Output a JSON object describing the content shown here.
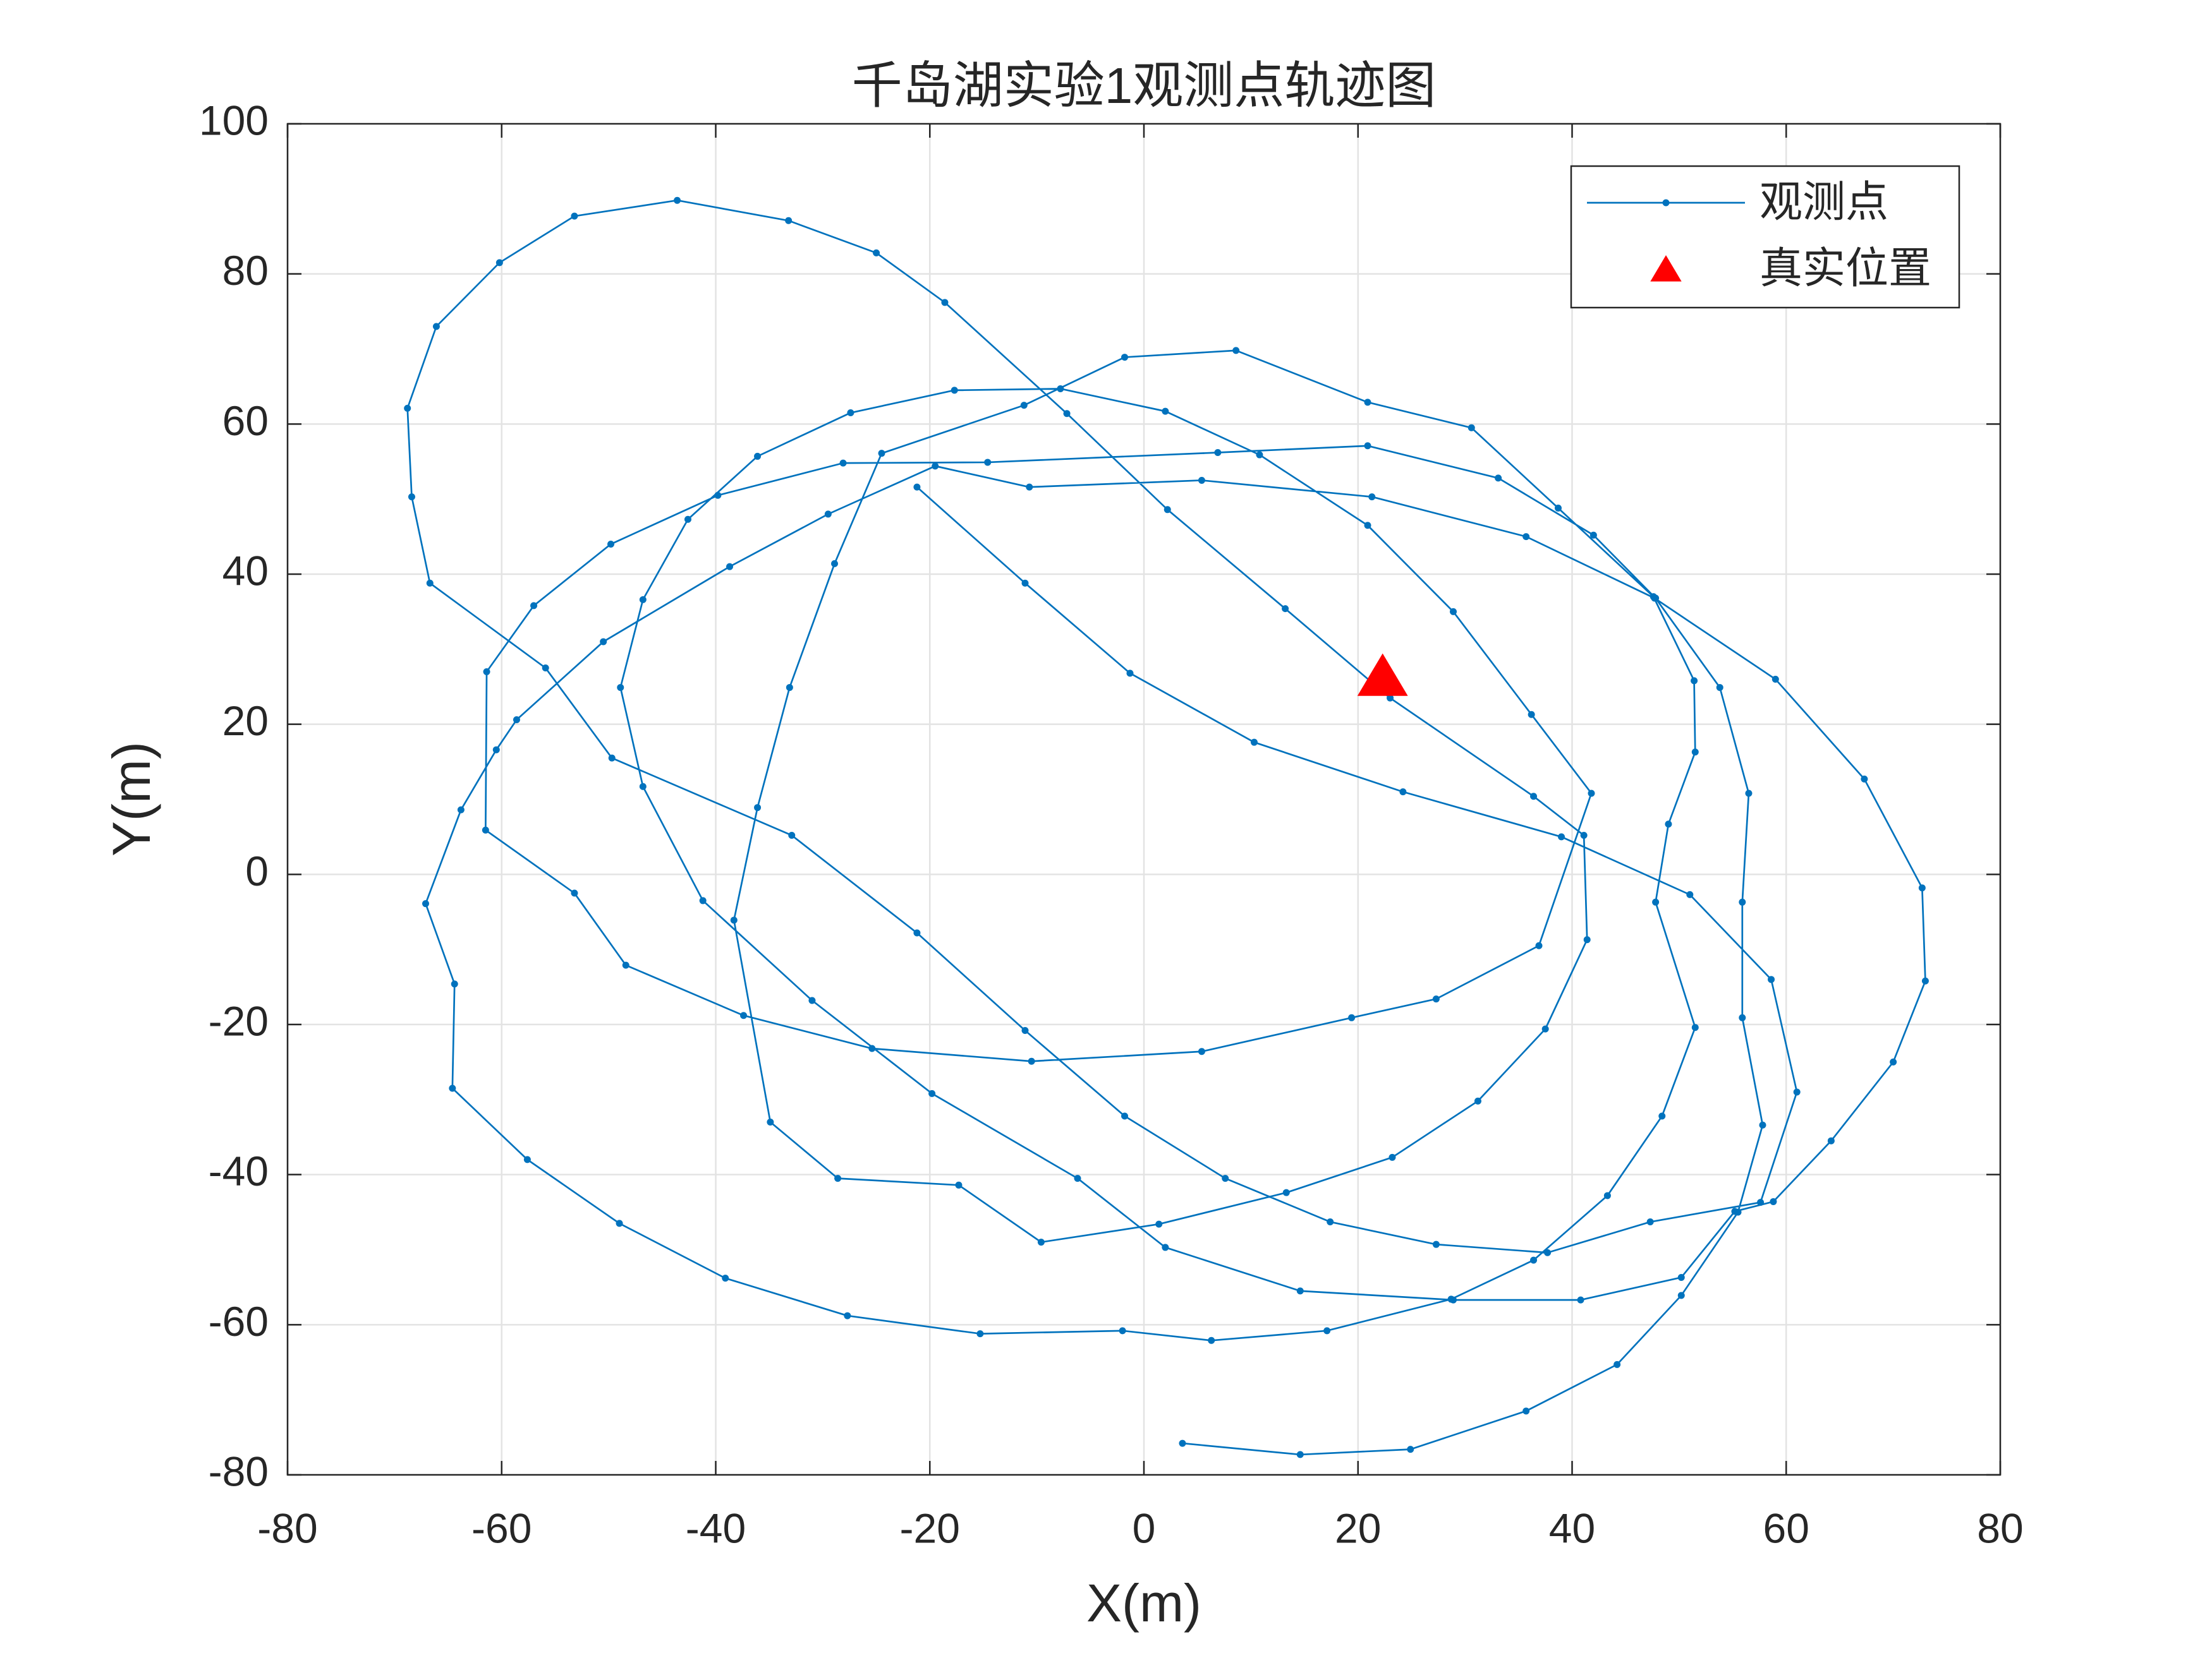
{
  "chart_data": {
    "type": "scatter-line",
    "title": "千岛湖实验1观测点轨迹图",
    "xlabel": "X(m)",
    "ylabel": "Y(m)",
    "xlim": [
      -80,
      80
    ],
    "ylim": [
      -80,
      100
    ],
    "xticks": [
      -80,
      -60,
      -40,
      -20,
      0,
      20,
      40,
      60,
      80
    ],
    "yticks": [
      -80,
      -60,
      -40,
      -20,
      0,
      20,
      40,
      60,
      80,
      100
    ],
    "grid": true,
    "legend": "northeast",
    "series": [
      {
        "name": "观测点",
        "color": "#0072bd",
        "marker": "dot",
        "x": [
          -21.2,
          -11.1,
          -1.3,
          10.3,
          24.2,
          39.0,
          51.0,
          58.6,
          61.0,
          57.6,
          47.3,
          37.7,
          27.3,
          17.4,
          7.6,
          -1.8,
          -11.1,
          -21.2,
          -32.9,
          -49.7,
          -55.9,
          -66.7,
          -68.4,
          -68.8,
          -66.1,
          -60.2,
          -53.2,
          -43.6,
          -33.2,
          -25.0,
          -18.6,
          -7.2,
          2.2,
          13.2,
          23.0,
          36.4,
          41.1,
          41.4,
          37.5,
          31.2,
          23.2,
          13.3,
          1.4,
          -9.6,
          -17.3,
          -28.6,
          -34.9,
          -38.3,
          -36.1,
          -33.1,
          -28.9,
          -24.5,
          -11.2,
          -1.8,
          8.6,
          20.9,
          30.6,
          38.7,
          47.6,
          51.4,
          51.5,
          49.0,
          47.8,
          51.5,
          48.4,
          43.3,
          36.4,
          28.7,
          17.1,
          6.3,
          -2.0,
          -15.3,
          -27.7,
          -39.1,
          -49.0,
          -57.6,
          -64.6,
          -64.4,
          -67.1,
          -63.8,
          -60.5,
          -58.6,
          -50.5,
          -38.7,
          -29.5,
          -19.5,
          -10.7,
          5.4,
          21.3,
          35.7,
          47.7,
          59.0,
          67.3,
          72.7,
          73.0,
          70.0,
          64.2,
          58.8,
          55.2,
          50.2,
          40.8,
          28.9,
          14.6,
          2.0,
          -6.2,
          -19.8,
          -31.0,
          -41.2,
          -46.8,
          -48.9,
          -46.8,
          -42.6,
          -36.1,
          -27.4,
          -17.7,
          -7.8,
          2.0,
          10.8,
          20.9,
          28.9,
          36.2,
          41.8,
          36.9,
          27.3,
          19.4,
          5.4,
          -10.5,
          -25.4,
          -37.4,
          -48.4,
          -53.2,
          -61.5,
          -61.4,
          -57.0,
          -49.8,
          -39.8,
          -28.1,
          -14.6,
          6.9,
          20.9,
          33.1,
          42.0,
          47.8,
          53.8,
          56.5,
          55.9,
          55.9,
          57.8,
          55.5,
          50.2,
          44.2,
          35.7,
          24.9,
          14.6,
          3.6
        ],
        "values": [
          51.6,
          38.8,
          26.8,
          17.6,
          11.0,
          5.0,
          -2.7,
          -14.0,
          -29.0,
          -43.7,
          -46.3,
          -50.4,
          -49.3,
          -46.3,
          -40.5,
          -32.2,
          -20.8,
          -7.8,
          5.2,
          15.5,
          27.5,
          38.8,
          50.3,
          62.1,
          73.0,
          81.5,
          87.7,
          89.8,
          87.1,
          82.8,
          76.2,
          61.4,
          48.6,
          35.4,
          23.5,
          10.4,
          5.2,
          -8.7,
          -20.6,
          -30.2,
          -37.7,
          -42.4,
          -46.6,
          -49.0,
          -41.4,
          -40.5,
          -33.0,
          -6.1,
          8.9,
          24.9,
          41.4,
          56.1,
          62.5,
          68.9,
          69.8,
          62.9,
          59.5,
          48.8,
          37.0,
          25.8,
          16.3,
          6.7,
          -3.7,
          -20.4,
          -32.2,
          -42.8,
          -51.4,
          -56.6,
          -60.8,
          -62.1,
          -60.8,
          -61.2,
          -58.8,
          -53.8,
          -46.5,
          -38.0,
          -28.5,
          -14.6,
          -3.9,
          8.6,
          16.6,
          20.6,
          31.0,
          41.0,
          48.0,
          54.4,
          51.6,
          52.5,
          50.3,
          45.0,
          36.8,
          26.0,
          12.7,
          -1.8,
          -14.2,
          -25.0,
          -35.5,
          -43.6,
          -44.9,
          -53.7,
          -56.7,
          -56.7,
          -55.5,
          -49.7,
          -40.5,
          -29.2,
          -16.8,
          -3.5,
          11.7,
          24.9,
          36.6,
          47.3,
          55.7,
          61.5,
          64.5,
          64.7,
          61.7,
          55.9,
          46.5,
          35.0,
          21.3,
          10.8,
          -9.5,
          -16.6,
          -19.1,
          -23.6,
          -24.9,
          -23.2,
          -18.8,
          -12.1,
          -2.5,
          5.9,
          27.0,
          35.8,
          44.0,
          50.5,
          54.8,
          54.9,
          56.2,
          57.1,
          52.8,
          45.2,
          36.8,
          24.9,
          10.8,
          -3.7,
          -19.1,
          -33.4,
          -45.0,
          -56.1,
          -65.3,
          -71.5,
          -76.6,
          -77.3,
          -75.8
        ]
      },
      {
        "name": "真实位置",
        "color": "#ff0000",
        "marker": "triangle",
        "x": [
          22.3
        ],
        "values": [
          25.9
        ]
      }
    ]
  }
}
